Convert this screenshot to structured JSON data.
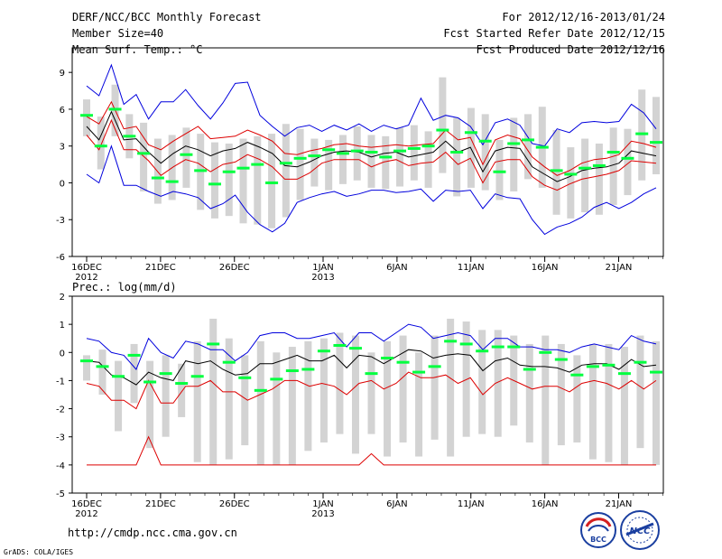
{
  "header": {
    "title": "DERF/NCC/BCC Monthly Forecast",
    "member_size": "Member Size=40",
    "variable": "Mean Surf. Temp.: °C",
    "for_period": "For 2012/12/16-2013/01/24",
    "fcst_started": "Fcst Started Refer Date 2012/12/15",
    "fcst_produced": "Fcst Produced Date 2012/12/16"
  },
  "footer": {
    "url": "http://cmdp.ncc.cma.gov.cn",
    "credit": "GrADS: COLA/IGES",
    "logo_bcc_text": "BCC",
    "logo_ncc_text": "NCC"
  },
  "colors": {
    "box": "#d3d3d3",
    "median": "#00ff3f",
    "ensemble_mean": "#000000",
    "std_band": "#dd0000",
    "extremes": "#0000dd"
  },
  "chart_data": [
    {
      "type": "box-line",
      "title": "Mean Surf. Temp.: °C",
      "ylabel": "°C",
      "ylim": [
        -6,
        11
      ],
      "yticks": [
        "-6",
        "-3",
        "0",
        "3",
        "6",
        "9"
      ],
      "ytick_values": [
        -6,
        -3,
        0,
        3,
        6,
        9
      ],
      "xtick_labels": [
        "16DEC",
        "21DEC",
        "26DEC",
        "1JAN",
        "6JAN",
        "11JAN",
        "16JAN",
        "21JAN"
      ],
      "xtick_days": [
        0,
        5,
        10,
        16,
        21,
        26,
        31,
        36
      ],
      "year_labels": [
        {
          "day": 0,
          "text": "2012"
        },
        {
          "day": 16,
          "text": "2013"
        }
      ],
      "days": 40,
      "mean": [
        4.6,
        3.5,
        5.8,
        3.5,
        3.6,
        2.5,
        1.6,
        2.4,
        3.0,
        2.7,
        2.2,
        2.6,
        2.8,
        3.3,
        2.9,
        2.4,
        1.4,
        1.3,
        1.7,
        2.2,
        2.5,
        2.6,
        2.5,
        2.1,
        2.4,
        2.5,
        2.1,
        2.3,
        2.5,
        3.4,
        2.5,
        2.9,
        0.9,
        2.6,
        2.9,
        2.8,
        1.3,
        0.7,
        0.1,
        0.5,
        1.0,
        1.2,
        1.3,
        1.6,
        2.6,
        2.4,
        2.2
      ],
      "upper": [
        5.4,
        4.8,
        6.6,
        4.4,
        4.6,
        3.1,
        2.7,
        3.4,
        4.0,
        4.6,
        3.6,
        3.7,
        3.8,
        4.3,
        3.9,
        3.4,
        2.4,
        2.3,
        2.6,
        2.8,
        3.1,
        3.2,
        3.0,
        2.9,
        3.0,
        3.1,
        3.0,
        3.1,
        3.2,
        4.3,
        3.5,
        3.7,
        1.5,
        3.5,
        3.9,
        3.6,
        2.1,
        1.3,
        0.6,
        1.0,
        1.6,
        1.9,
        2.0,
        2.3,
        3.4,
        3.2,
        2.9
      ],
      "lower": [
        3.9,
        2.7,
        5.1,
        2.7,
        2.7,
        1.8,
        0.6,
        1.3,
        1.9,
        1.6,
        0.9,
        1.5,
        1.7,
        2.3,
        1.9,
        1.3,
        0.3,
        0.3,
        0.8,
        1.6,
        1.9,
        1.9,
        1.9,
        1.3,
        1.7,
        1.9,
        1.4,
        1.6,
        1.7,
        2.5,
        1.5,
        2.0,
        0.0,
        1.7,
        1.9,
        1.9,
        0.5,
        -0.2,
        -0.6,
        -0.1,
        0.3,
        0.5,
        0.7,
        1.0,
        1.8,
        1.7,
        1.6
      ],
      "max": [
        7.9,
        7.1,
        9.6,
        6.4,
        7.2,
        5.2,
        6.6,
        6.6,
        7.6,
        6.3,
        5.2,
        6.5,
        8.1,
        8.2,
        5.5,
        4.6,
        3.8,
        4.5,
        4.7,
        4.2,
        4.7,
        4.3,
        4.8,
        4.2,
        4.7,
        4.4,
        4.7,
        6.9,
        5.1,
        5.5,
        5.3,
        4.6,
        3.1,
        4.9,
        5.2,
        4.7,
        3.2,
        3.0,
        4.4,
        4.1,
        4.9,
        5.0,
        4.9,
        5.0,
        6.4,
        5.7,
        4.4
      ],
      "min": [
        0.7,
        0.0,
        3.0,
        -0.2,
        -0.2,
        -0.7,
        -1.1,
        -0.7,
        -0.9,
        -1.2,
        -2.1,
        -1.7,
        -1.0,
        -2.4,
        -3.4,
        -4.0,
        -3.3,
        -1.6,
        -1.2,
        -0.9,
        -0.7,
        -1.1,
        -0.9,
        -0.6,
        -0.6,
        -0.8,
        -0.7,
        -0.5,
        -1.5,
        -0.6,
        -0.7,
        -0.6,
        -2.1,
        -0.9,
        -1.2,
        -1.3,
        -3.0,
        -4.2,
        -3.6,
        -3.3,
        -2.8,
        -2.0,
        -1.6,
        -2.1,
        -1.6,
        -0.9,
        -0.4
      ],
      "medians": [
        5.5,
        3.0,
        6.0,
        3.8,
        2.4,
        0.4,
        0.1,
        2.3,
        1.0,
        -0.1,
        0.9,
        1.2,
        1.5,
        0.0,
        1.6,
        2.0,
        2.2,
        2.7,
        2.4,
        2.6,
        2.5,
        2.1,
        2.6,
        2.8,
        3.0,
        4.3,
        2.5,
        4.1,
        3.4,
        0.9,
        3.2,
        3.5,
        2.9,
        1.0,
        0.7,
        1.2,
        1.4,
        2.5,
        2.0,
        4.0,
        3.3
      ],
      "box_hi": [
        6.8,
        5.4,
        8.0,
        5.6,
        4.9,
        3.6,
        3.9,
        4.5,
        4.0,
        3.3,
        3.2,
        3.6,
        3.8,
        4.0,
        4.8,
        4.4,
        3.6,
        3.5,
        3.9,
        4.6,
        3.9,
        3.8,
        4.5,
        4.7,
        4.2,
        8.6,
        5.3,
        6.1,
        5.6,
        3.5,
        5.3,
        5.6,
        6.2,
        4.3,
        2.9,
        3.6,
        3.2,
        4.5,
        4.4,
        7.6,
        7.0
      ],
      "box_lo": [
        3.8,
        1.1,
        3.8,
        2.0,
        -0.7,
        -1.7,
        -1.4,
        -0.4,
        -2.2,
        -2.9,
        -2.7,
        -3.3,
        -3.4,
        -3.7,
        -2.8,
        -1.4,
        -0.3,
        -0.6,
        -0.1,
        0.2,
        -0.4,
        -0.5,
        -0.3,
        0.2,
        -0.4,
        0.8,
        -1.1,
        -0.4,
        -0.6,
        -1.4,
        -0.7,
        0.3,
        -0.4,
        -2.6,
        -2.9,
        -2.4,
        -2.6,
        -1.8,
        -1.0,
        0.2,
        0.7
      ]
    },
    {
      "type": "box-line",
      "title": "Prec.: log(mm/d)",
      "ylabel": "log(mm/d)",
      "ylim": [
        -5,
        2
      ],
      "yticks": [
        "-5",
        "-4",
        "-3",
        "-2",
        "-1",
        "0",
        "1",
        "2"
      ],
      "ytick_values": [
        -5,
        -4,
        -3,
        -2,
        -1,
        0,
        1,
        2
      ],
      "xtick_labels": [
        "16DEC",
        "21DEC",
        "26DEC",
        "1JAN",
        "6JAN",
        "11JAN",
        "16JAN",
        "21JAN"
      ],
      "xtick_days": [
        0,
        5,
        10,
        16,
        21,
        26,
        31,
        36
      ],
      "year_labels": [
        {
          "day": 0,
          "text": "2012"
        },
        {
          "day": 16,
          "text": "2013"
        }
      ],
      "days": 40,
      "mean": [
        -0.3,
        -0.35,
        -0.8,
        -0.9,
        -1.15,
        -0.7,
        -0.9,
        -1.0,
        -0.3,
        -0.4,
        -0.3,
        -0.6,
        -0.8,
        -0.75,
        -0.4,
        -0.4,
        -0.25,
        -0.1,
        -0.3,
        -0.3,
        -0.1,
        -0.55,
        -0.1,
        -0.15,
        -0.4,
        -0.15,
        0.1,
        0.05,
        -0.2,
        -0.1,
        -0.05,
        -0.1,
        -0.65,
        -0.3,
        -0.2,
        -0.45,
        -0.5,
        -0.5,
        -0.55,
        -0.7,
        -0.45,
        -0.4,
        -0.4,
        -0.6,
        -0.25,
        -0.5,
        -0.45
      ],
      "upper": [
        0.5,
        0.4,
        0.0,
        -0.1,
        -0.6,
        0.5,
        0.0,
        -0.2,
        0.4,
        0.3,
        0.1,
        0.1,
        -0.3,
        0.0,
        0.6,
        0.7,
        0.7,
        0.5,
        0.5,
        0.6,
        0.7,
        0.2,
        0.7,
        0.7,
        0.4,
        0.7,
        1.0,
        0.9,
        0.5,
        0.6,
        0.7,
        0.6,
        0.1,
        0.5,
        0.5,
        0.2,
        0.2,
        0.1,
        0.1,
        0.0,
        0.2,
        0.3,
        0.2,
        0.1,
        0.6,
        0.4,
        0.3
      ],
      "lower": [
        -1.1,
        -1.2,
        -1.7,
        -1.7,
        -2.0,
        -1.0,
        -1.8,
        -1.8,
        -1.2,
        -1.2,
        -1.0,
        -1.4,
        -1.4,
        -1.7,
        -1.5,
        -1.3,
        -1.0,
        -1.0,
        -1.2,
        -1.1,
        -1.2,
        -1.5,
        -1.1,
        -1.0,
        -1.3,
        -1.1,
        -0.7,
        -0.9,
        -0.9,
        -0.8,
        -1.1,
        -0.9,
        -1.5,
        -1.1,
        -0.9,
        -1.1,
        -1.3,
        -1.2,
        -1.2,
        -1.4,
        -1.1,
        -1.0,
        -1.1,
        -1.3,
        -1.0,
        -1.3,
        -1.0
      ],
      "min": [
        -4.0,
        -4.0,
        -4.0,
        -4.0,
        -4.0,
        -3.0,
        -4.0,
        -4.0,
        -4.0,
        -4.0,
        -4.0,
        -4.0,
        -4.0,
        -4.0,
        -4.0,
        -4.0,
        -4.0,
        -4.0,
        -4.0,
        -4.0,
        -4.0,
        -4.0,
        -4.0,
        -3.6,
        -4.0,
        -4.0,
        -4.0,
        -4.0,
        -4.0,
        -4.0,
        -4.0,
        -4.0,
        -4.0,
        -4.0,
        -4.0,
        -4.0,
        -4.0,
        -4.0,
        -4.0,
        -4.0,
        -4.0,
        -4.0,
        -4.0,
        -4.0,
        -4.0,
        -4.0,
        -4.0
      ],
      "medians": [
        -0.3,
        -0.5,
        -0.85,
        -0.1,
        -1.05,
        -0.75,
        -1.1,
        -0.85,
        0.3,
        -0.35,
        -0.9,
        -1.35,
        -0.95,
        -0.65,
        -0.6,
        0.05,
        0.25,
        0.15,
        -0.75,
        -0.2,
        -0.35,
        -0.7,
        -0.5,
        0.4,
        0.3,
        0.05,
        0.2,
        0.2,
        -0.6,
        0.0,
        -0.25,
        -0.8,
        -0.5,
        -0.45,
        -0.75,
        -0.35,
        -0.7
      ],
      "box_hi": [
        -0.1,
        0.1,
        -0.3,
        0.3,
        -0.3,
        -0.1,
        -0.4,
        0.4,
        1.2,
        0.5,
        -0.1,
        0.4,
        0.0,
        0.2,
        0.4,
        0.5,
        0.7,
        0.6,
        0.0,
        0.4,
        0.6,
        0.0,
        0.6,
        1.2,
        1.1,
        0.8,
        0.8,
        0.6,
        0.3,
        0.6,
        0.3,
        -0.1,
        0.3,
        0.3,
        0.2,
        0.6,
        0.4
      ],
      "box_lo": [
        -1.0,
        -1.5,
        -2.8,
        -1.8,
        -3.4,
        -3.0,
        -2.3,
        -3.9,
        -4.0,
        -3.8,
        -3.3,
        -4.0,
        -4.0,
        -4.0,
        -3.5,
        -3.2,
        -2.9,
        -3.6,
        -2.9,
        -3.7,
        -3.2,
        -3.7,
        -3.1,
        -3.7,
        -3.0,
        -2.9,
        -3.0,
        -2.6,
        -3.2,
        -4.0,
        -3.3,
        -3.2,
        -3.8,
        -3.9,
        -4.0,
        -3.4,
        -4.0
      ]
    }
  ]
}
